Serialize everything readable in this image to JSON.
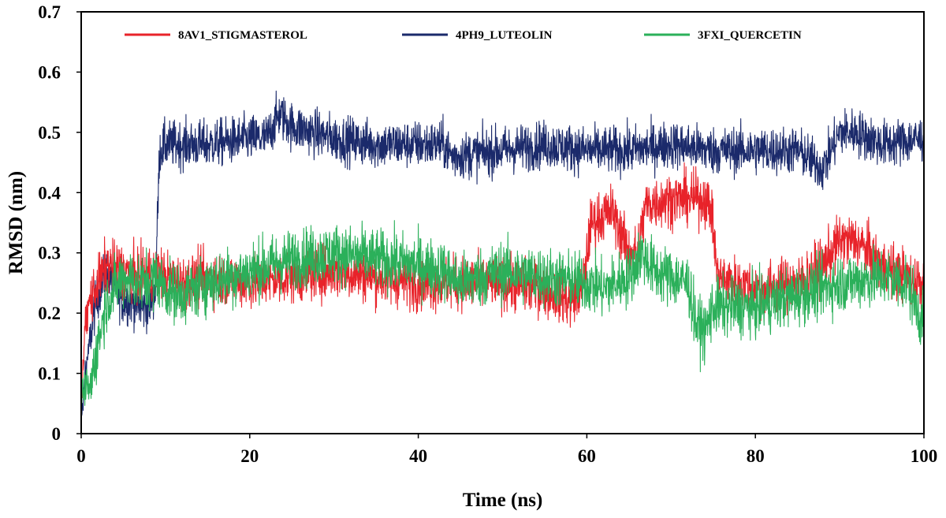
{
  "chart_data": {
    "type": "line",
    "title": "",
    "xlabel": "Time (ns)",
    "ylabel": "RMSD (nm)",
    "xlim": [
      0,
      100
    ],
    "ylim": [
      0,
      0.7
    ],
    "x_ticks": [
      0,
      20,
      40,
      60,
      80,
      100
    ],
    "x_tick_labels": [
      "0",
      "20",
      "40",
      "60",
      "80",
      "100"
    ],
    "y_ticks": [
      0,
      0.1,
      0.2,
      0.3,
      0.4,
      0.5,
      0.6,
      0.7
    ],
    "y_tick_labels": [
      "0",
      "0.1",
      "0.2",
      "0.3",
      "0.4",
      "0.5",
      "0.6",
      "0.7"
    ],
    "grid": false,
    "legend_position": "top",
    "series": [
      {
        "name": "8AV1_STIGMASTEROL",
        "color": "#e8232a",
        "noise": 0.045,
        "x": [
          0,
          0.5,
          1,
          2,
          3,
          5,
          7,
          9,
          10,
          12,
          15,
          20,
          25,
          30,
          35,
          40,
          45,
          50,
          55,
          58,
          59.5,
          60.5,
          63,
          65,
          66,
          67,
          70,
          74,
          74.8,
          75.5,
          80,
          85,
          88,
          90,
          92,
          95,
          98,
          100
        ],
        "y": [
          0.05,
          0.18,
          0.22,
          0.25,
          0.28,
          0.27,
          0.26,
          0.27,
          0.26,
          0.25,
          0.26,
          0.25,
          0.26,
          0.27,
          0.26,
          0.25,
          0.25,
          0.25,
          0.24,
          0.22,
          0.24,
          0.35,
          0.37,
          0.3,
          0.3,
          0.38,
          0.39,
          0.39,
          0.37,
          0.26,
          0.24,
          0.25,
          0.28,
          0.32,
          0.32,
          0.28,
          0.26,
          0.25
        ]
      },
      {
        "name": "4PH9_LUTEOLIN",
        "color": "#1b2a6b",
        "noise": 0.04,
        "x": [
          0,
          0.5,
          1,
          1.5,
          2,
          3,
          4,
          5,
          6,
          7,
          8,
          8.8,
          9.3,
          10,
          15,
          20,
          22,
          23.5,
          25,
          30,
          35,
          40,
          43,
          44,
          50,
          55,
          60,
          65,
          70,
          75,
          80,
          85,
          88,
          90,
          92,
          95,
          100
        ],
        "y": [
          0.02,
          0.1,
          0.15,
          0.2,
          0.23,
          0.27,
          0.24,
          0.22,
          0.22,
          0.21,
          0.21,
          0.24,
          0.47,
          0.48,
          0.48,
          0.49,
          0.49,
          0.53,
          0.51,
          0.49,
          0.48,
          0.48,
          0.48,
          0.46,
          0.47,
          0.48,
          0.47,
          0.47,
          0.48,
          0.47,
          0.47,
          0.47,
          0.44,
          0.5,
          0.5,
          0.48,
          0.49
        ]
      },
      {
        "name": "3FXI_QUERCETIN",
        "color": "#2bb05a",
        "noise": 0.05,
        "x": [
          0,
          0.5,
          1,
          2,
          3,
          5,
          7,
          9,
          10,
          12,
          15,
          20,
          25,
          30,
          35,
          40,
          43,
          45,
          50,
          55,
          60,
          62,
          65,
          66.5,
          68,
          70,
          72,
          73,
          74,
          75,
          80,
          85,
          90,
          95,
          98,
          100
        ],
        "y": [
          0.06,
          0.08,
          0.07,
          0.15,
          0.22,
          0.26,
          0.25,
          0.26,
          0.24,
          0.23,
          0.25,
          0.27,
          0.29,
          0.3,
          0.29,
          0.28,
          0.27,
          0.25,
          0.27,
          0.26,
          0.25,
          0.24,
          0.26,
          0.3,
          0.27,
          0.26,
          0.25,
          0.18,
          0.17,
          0.21,
          0.21,
          0.23,
          0.25,
          0.26,
          0.25,
          0.18
        ]
      }
    ]
  }
}
